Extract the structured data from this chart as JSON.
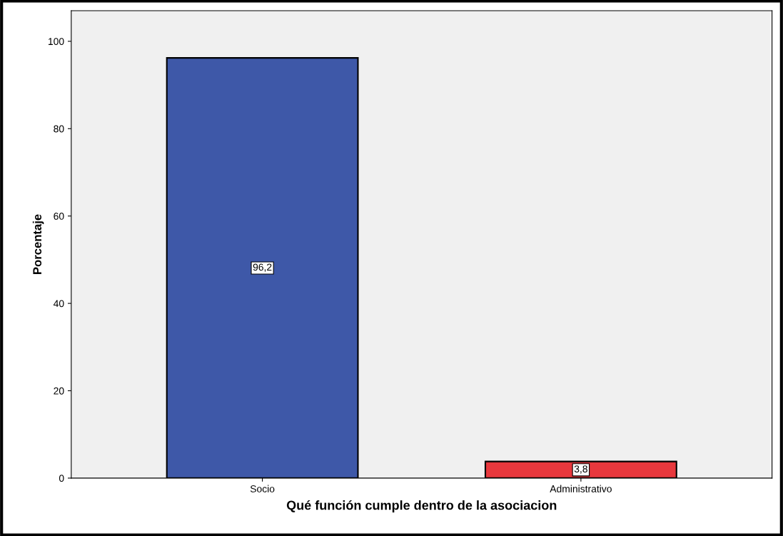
{
  "chart_data": {
    "type": "bar",
    "xlabel": "Qué función cumple dentro de la asociacion",
    "ylabel": "Porcentaje",
    "categories": [
      "Socio",
      "Administrativo"
    ],
    "values": [
      96.2,
      3.8
    ],
    "colors": [
      "#3e58a8",
      "#e8383d"
    ],
    "value_labels": [
      "96,2",
      "3,8"
    ],
    "ylim": [
      0,
      107
    ],
    "yticks": [
      0,
      20,
      40,
      60,
      80,
      100
    ],
    "grid": false,
    "legend": false
  }
}
